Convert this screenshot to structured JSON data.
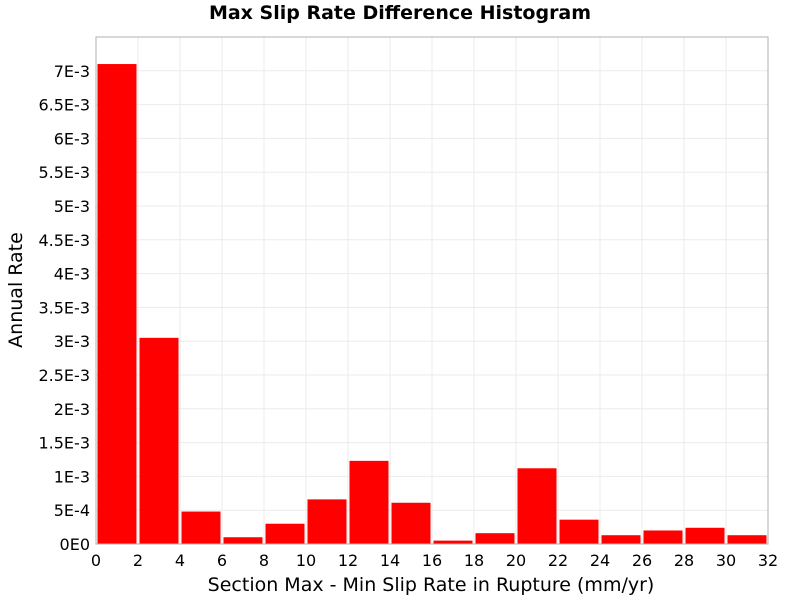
{
  "chart_data": {
    "type": "bar",
    "title": "Max Slip Rate Difference Histogram",
    "xlabel": "Section Max - Min Slip Rate in Rupture (mm/yr)",
    "ylabel": "Annual Rate",
    "xlim": [
      0,
      32
    ],
    "ylim": [
      0,
      0.0075
    ],
    "bin_width": 2,
    "bins": [
      {
        "x0": 0,
        "x1": 2,
        "value": 0.0071
      },
      {
        "x0": 2,
        "x1": 4,
        "value": 0.00305
      },
      {
        "x0": 4,
        "x1": 6,
        "value": 0.00048
      },
      {
        "x0": 6,
        "x1": 8,
        "value": 0.0001
      },
      {
        "x0": 8,
        "x1": 10,
        "value": 0.0003
      },
      {
        "x0": 10,
        "x1": 12,
        "value": 0.00066
      },
      {
        "x0": 12,
        "x1": 14,
        "value": 0.00123
      },
      {
        "x0": 14,
        "x1": 16,
        "value": 0.00061
      },
      {
        "x0": 16,
        "x1": 18,
        "value": 5e-05
      },
      {
        "x0": 18,
        "x1": 20,
        "value": 0.00016
      },
      {
        "x0": 20,
        "x1": 22,
        "value": 0.00112
      },
      {
        "x0": 22,
        "x1": 24,
        "value": 0.00036
      },
      {
        "x0": 24,
        "x1": 26,
        "value": 0.00013
      },
      {
        "x0": 26,
        "x1": 28,
        "value": 0.0002
      },
      {
        "x0": 28,
        "x1": 30,
        "value": 0.00024
      },
      {
        "x0": 30,
        "x1": 32,
        "value": 0.00013
      }
    ],
    "x_ticks": [
      {
        "value": 0,
        "label": "0"
      },
      {
        "value": 2,
        "label": "2"
      },
      {
        "value": 4,
        "label": "4"
      },
      {
        "value": 6,
        "label": "6"
      },
      {
        "value": 8,
        "label": "8"
      },
      {
        "value": 10,
        "label": "10"
      },
      {
        "value": 12,
        "label": "12"
      },
      {
        "value": 14,
        "label": "14"
      },
      {
        "value": 16,
        "label": "16"
      },
      {
        "value": 18,
        "label": "18"
      },
      {
        "value": 20,
        "label": "20"
      },
      {
        "value": 22,
        "label": "22"
      },
      {
        "value": 24,
        "label": "24"
      },
      {
        "value": 26,
        "label": "26"
      },
      {
        "value": 28,
        "label": "28"
      },
      {
        "value": 30,
        "label": "30"
      },
      {
        "value": 32,
        "label": "32"
      }
    ],
    "y_ticks": [
      {
        "value": 0,
        "label": "0E0"
      },
      {
        "value": 0.0005,
        "label": "5E-4"
      },
      {
        "value": 0.001,
        "label": "1E-3"
      },
      {
        "value": 0.0015,
        "label": "1.5E-3"
      },
      {
        "value": 0.002,
        "label": "2E-3"
      },
      {
        "value": 0.0025,
        "label": "2.5E-3"
      },
      {
        "value": 0.003,
        "label": "3E-3"
      },
      {
        "value": 0.0035,
        "label": "3.5E-3"
      },
      {
        "value": 0.004,
        "label": "4E-3"
      },
      {
        "value": 0.0045,
        "label": "4.5E-3"
      },
      {
        "value": 0.005,
        "label": "5E-3"
      },
      {
        "value": 0.0055,
        "label": "5.5E-3"
      },
      {
        "value": 0.006,
        "label": "6E-3"
      },
      {
        "value": 0.0065,
        "label": "6.5E-3"
      },
      {
        "value": 0.007,
        "label": "7E-3"
      }
    ],
    "grid": true,
    "colors": {
      "bar": "#ff0000",
      "grid": "#ebebeb",
      "frame": "#b0b0b0"
    }
  }
}
